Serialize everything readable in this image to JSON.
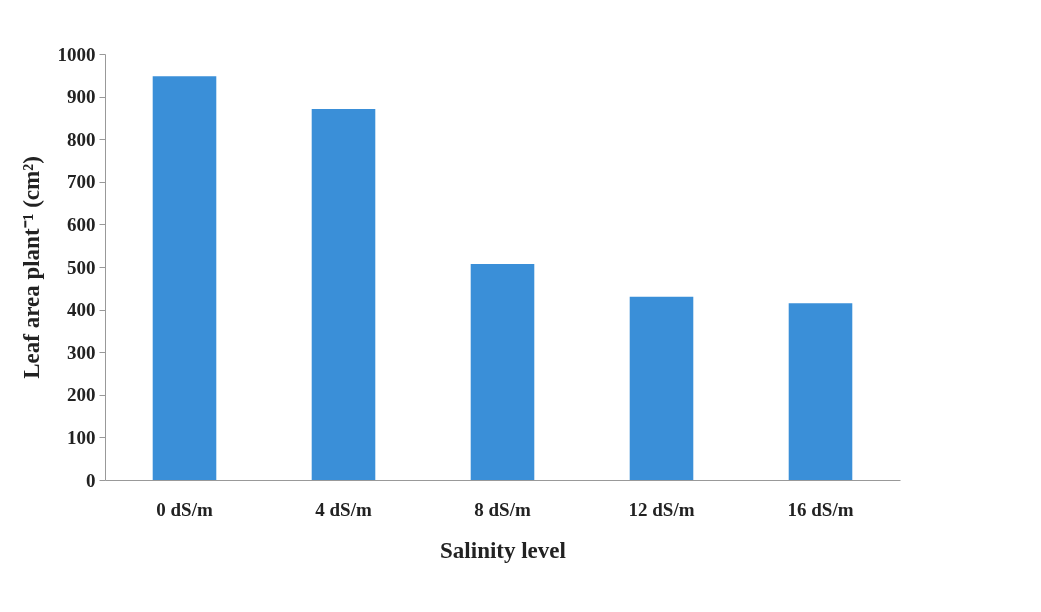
{
  "chart_data": {
    "type": "bar",
    "xlabel": "Salinity level",
    "ylabel": "Leaf area plant⁻¹ (cm²)",
    "categories": [
      "0 dS/m",
      "4 dS/m",
      "8 dS/m",
      "12 dS/m",
      "16 dS/m"
    ],
    "values": [
      948,
      871,
      507,
      430,
      415
    ],
    "color": "#3a8fd8",
    "ylim": [
      0,
      1000
    ],
    "yticks": [
      0,
      100,
      200,
      300,
      400,
      500,
      600,
      700,
      800,
      900,
      1000
    ],
    "grid": false
  }
}
